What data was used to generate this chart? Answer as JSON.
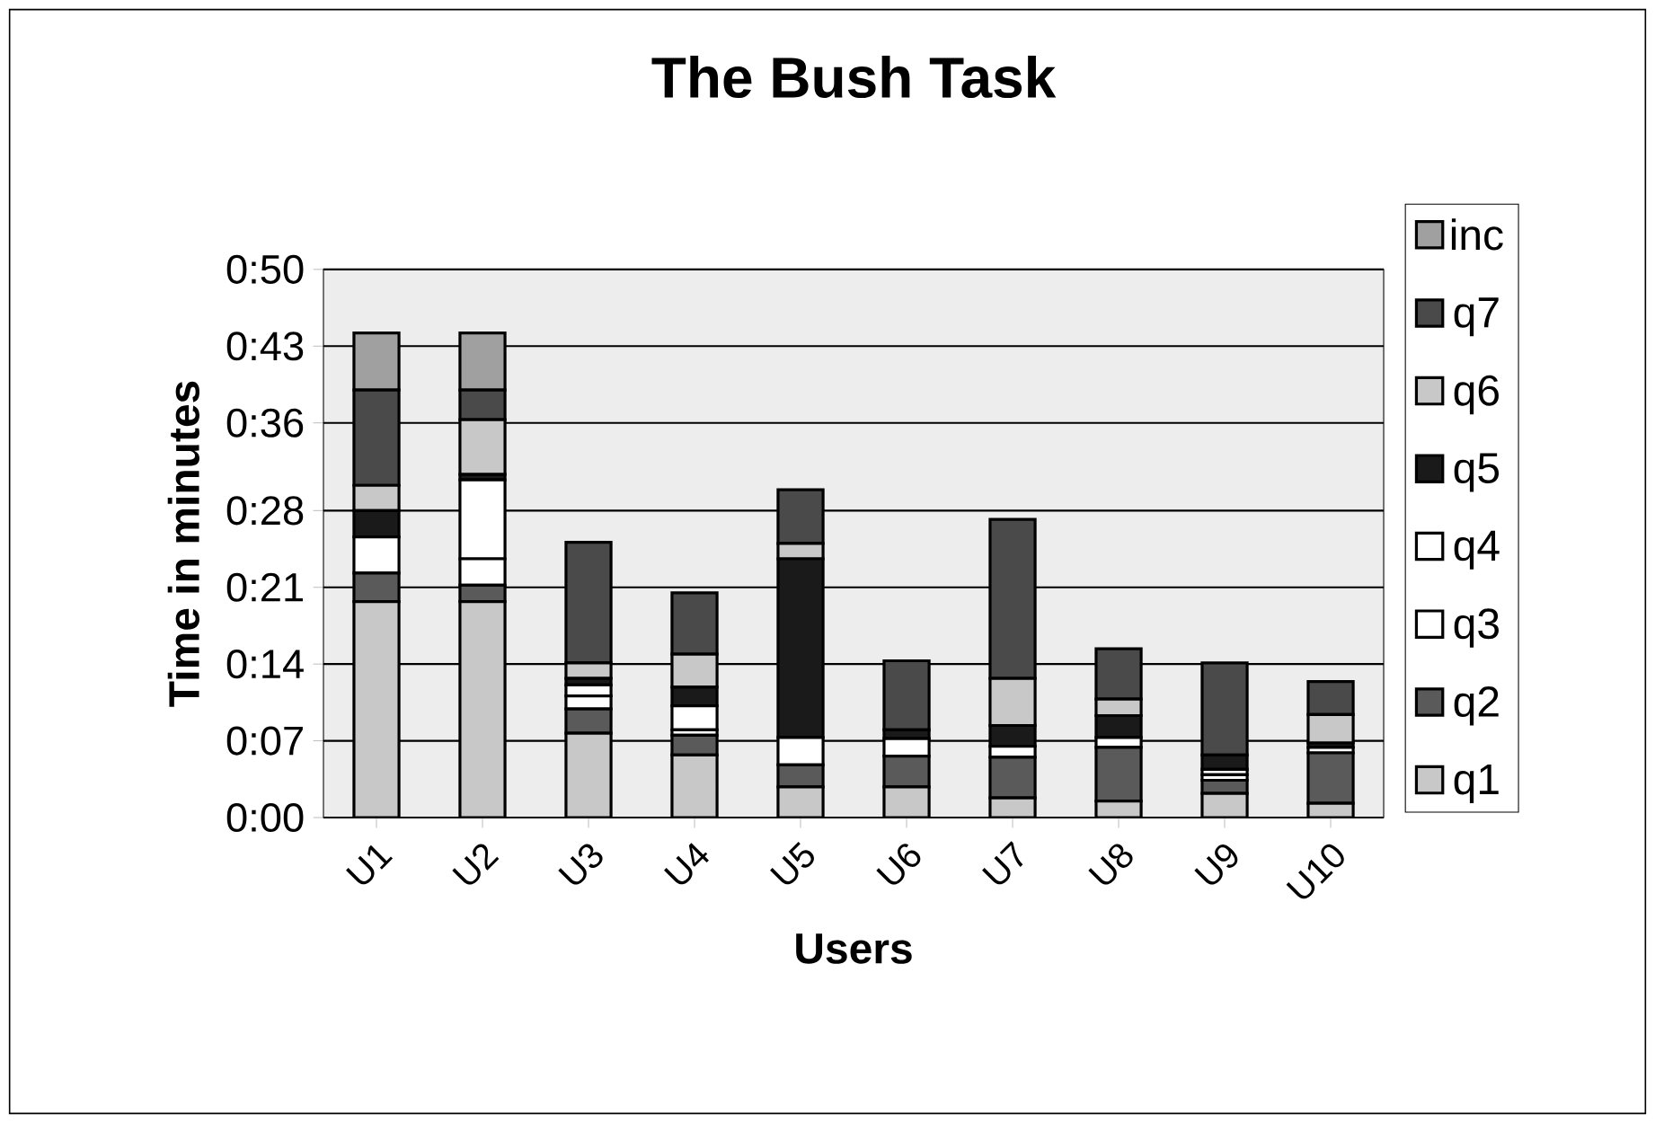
{
  "chart_data": {
    "type": "bar",
    "stacked": true,
    "title": "The Bush Task",
    "xlabel": "Users",
    "ylabel": "Time in minutes",
    "categories": [
      "U1",
      "U2",
      "U3",
      "U4",
      "U5",
      "U6",
      "U7",
      "U8",
      "U9",
      "U10"
    ],
    "series": [
      {
        "name": "q1",
        "color": "#c8c8c8",
        "values": [
          19.7,
          19.7,
          7.7,
          5.7,
          2.8,
          2.8,
          1.8,
          1.5,
          2.2,
          1.3
        ]
      },
      {
        "name": "q2",
        "color": "#5a5a5a",
        "values": [
          2.6,
          1.5,
          2.2,
          1.8,
          2.0,
          2.8,
          3.7,
          4.9,
          1.2,
          4.6
        ]
      },
      {
        "name": "q3",
        "color": "#ffffff",
        "values": [
          3.3,
          2.4,
          1.2,
          0.5,
          2.5,
          1.6,
          1.0,
          0.9,
          0.5,
          0.5
        ]
      },
      {
        "name": "q4",
        "color": "#ffffff",
        "values": [
          0,
          7.2,
          1.0,
          2.2,
          0,
          0,
          0,
          0,
          0.5,
          0
        ]
      },
      {
        "name": "q5",
        "color": "#1a1a1a",
        "values": [
          2.4,
          0.5,
          0.6,
          1.7,
          16.3,
          0.8,
          1.9,
          2.0,
          1.3,
          0.4
        ]
      },
      {
        "name": "q6",
        "color": "#c8c8c8",
        "values": [
          2.3,
          5.0,
          1.4,
          3.0,
          1.4,
          0,
          4.3,
          1.5,
          0,
          2.6
        ]
      },
      {
        "name": "q7",
        "color": "#4a4a4a",
        "values": [
          8.7,
          2.7,
          11.0,
          5.6,
          4.9,
          6.3,
          14.5,
          4.6,
          8.4,
          3.0
        ]
      },
      {
        "name": "inc",
        "color": "#a0a0a0",
        "values": [
          5.2,
          5.2,
          0,
          0,
          0,
          0,
          0,
          0,
          0,
          0
        ]
      }
    ],
    "ylim": [
      0,
      50
    ],
    "yticks": [
      {
        "value": 0,
        "label": "0:00"
      },
      {
        "value": 7,
        "label": "0:07"
      },
      {
        "value": 14,
        "label": "0:14"
      },
      {
        "value": 21,
        "label": "0:21"
      },
      {
        "value": 28,
        "label": "0:28"
      },
      {
        "value": 36,
        "label": "0:36"
      },
      {
        "value": 43,
        "label": "0:43"
      },
      {
        "value": 50,
        "label": "0:50"
      }
    ],
    "grid": "y",
    "legend": "right"
  }
}
